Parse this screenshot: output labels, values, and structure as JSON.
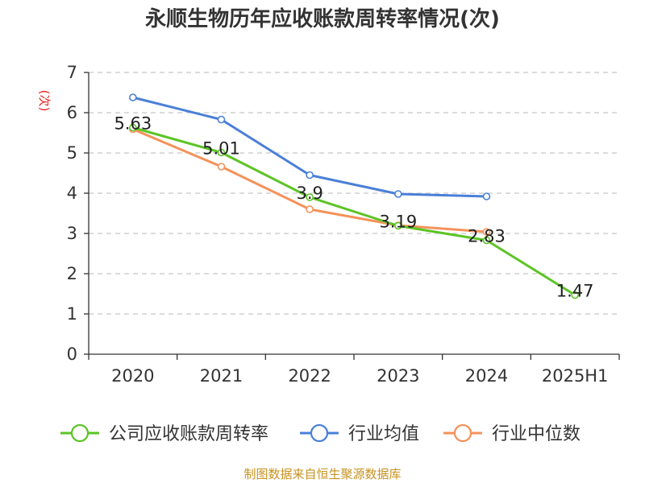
{
  "chart_data": {
    "type": "line",
    "title": "永顺生物历年应收账款周转率情况(次)",
    "ylabel": "(次)",
    "xlabel": "",
    "categories": [
      "2020",
      "2021",
      "2022",
      "2023",
      "2024",
      "2025H1"
    ],
    "ylim": [
      0,
      7
    ],
    "yticks": [
      0,
      1,
      2,
      3,
      4,
      5,
      6,
      7
    ],
    "grid": true,
    "legend_position": "bottom",
    "series": [
      {
        "name": "公司应收账款周转率",
        "color": "#5cc425",
        "values": [
          5.63,
          5.01,
          3.9,
          3.19,
          2.83,
          1.47
        ],
        "data_labels": [
          "5.63",
          "5.01",
          "3.9",
          "3.19",
          "2.83",
          "1.47"
        ]
      },
      {
        "name": "行业均值",
        "color": "#4a7fd8",
        "values": [
          6.38,
          5.83,
          4.45,
          3.98,
          3.92,
          null
        ]
      },
      {
        "name": "行业中位数",
        "color": "#f5925a",
        "values": [
          5.59,
          4.66,
          3.6,
          3.2,
          3.04,
          null
        ]
      }
    ]
  },
  "source": "制图数据来自恒生聚源数据库"
}
